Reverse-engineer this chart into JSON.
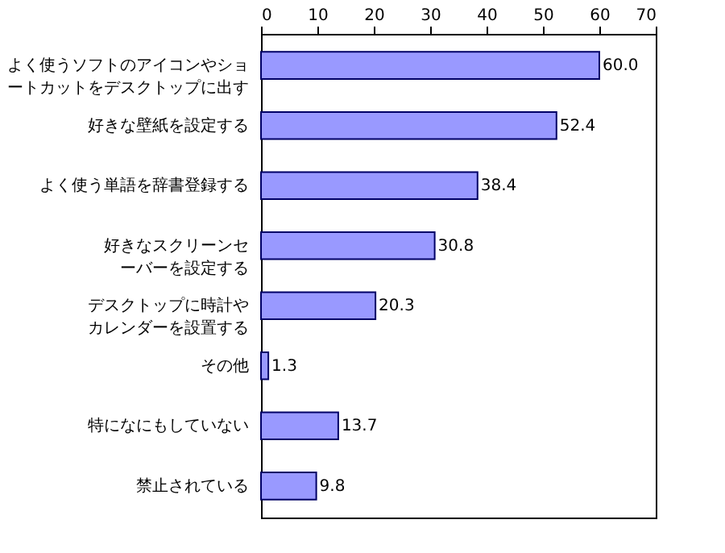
{
  "chart_data": {
    "type": "bar",
    "orientation": "horizontal",
    "categories": [
      "よく使うソフトのアイコンやショートカットをデスクトップに出す",
      "好きな壁紙を設定する",
      "よく使う単語を辞書登録する",
      "好きなスクリーンセーバーを設定する",
      "デスクトップに時計やカレンダーを設置する",
      "その他",
      "特になにもしていない",
      "禁止されている"
    ],
    "values": [
      60.0,
      52.4,
      38.4,
      30.8,
      20.3,
      1.3,
      13.7,
      9.8
    ],
    "value_labels": [
      "60.0",
      "52.4",
      "38.4",
      "30.8",
      "20.3",
      "1.3",
      "13.7",
      "9.8"
    ],
    "color": "#9999ff",
    "xlim": [
      0,
      70
    ],
    "xticks": [
      0,
      10,
      20,
      30,
      40,
      50,
      60,
      70
    ],
    "grid": false
  }
}
